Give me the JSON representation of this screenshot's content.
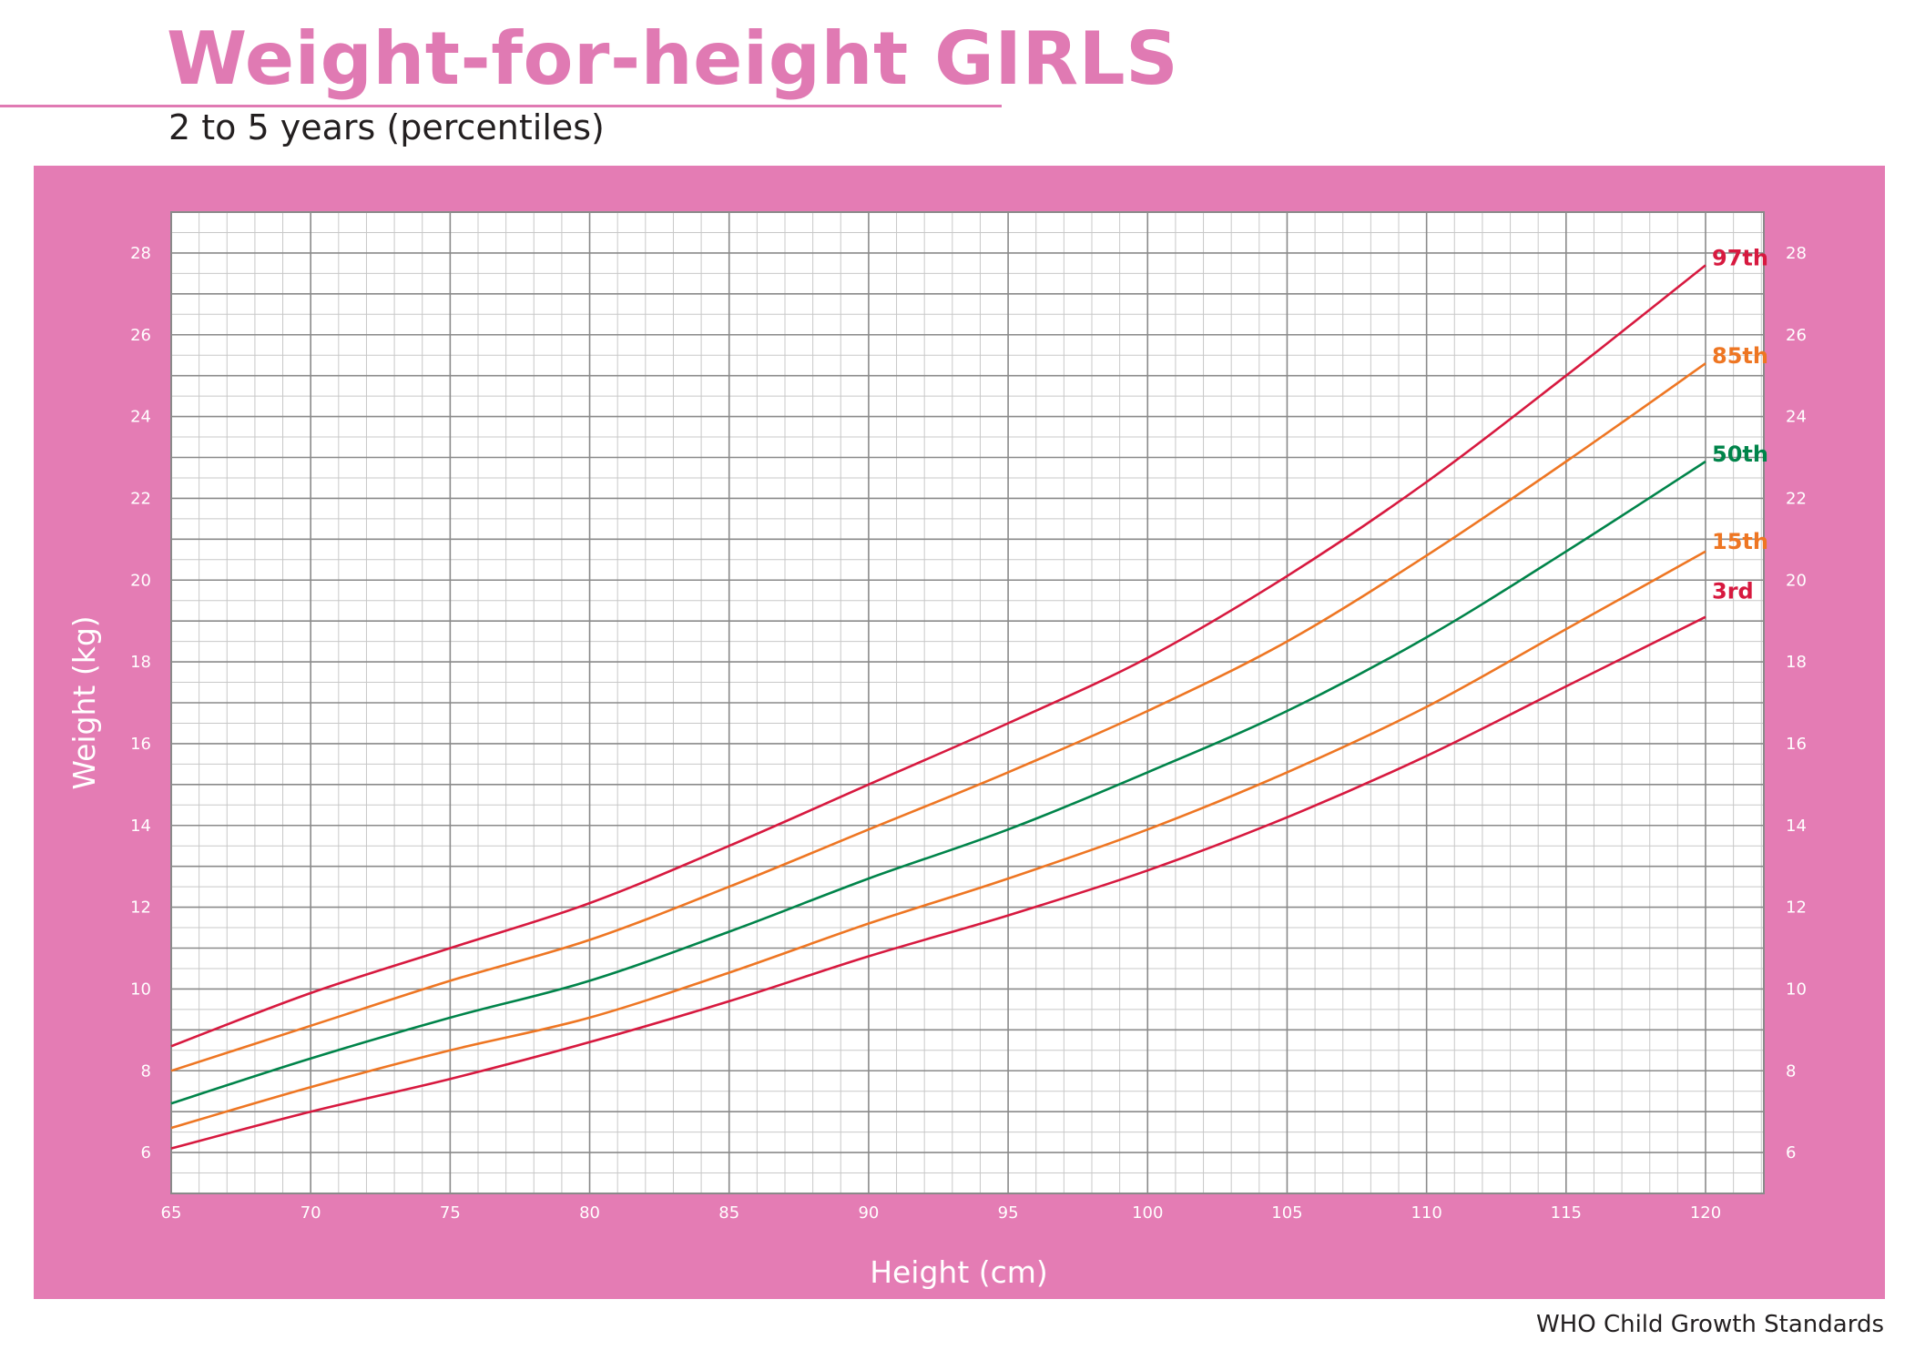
{
  "header": {
    "title": "Weight-for-height GIRLS",
    "subtitle": "2 to 5 years (percentiles)"
  },
  "footer": {
    "credit": "WHO Child Growth Standards"
  },
  "colors": {
    "frame": "#e47cb4",
    "title": "#e07ab3",
    "grid_major": "#8a8a8a",
    "grid_minor": "#c8c8c8",
    "p97": "#d7193f",
    "p85": "#ee7623",
    "p50": "#00844a",
    "p15": "#ee7623",
    "p3": "#d7193f"
  },
  "chart_data": {
    "type": "line",
    "xlabel": "Height (cm)",
    "ylabel": "Weight (kg)",
    "xlim": [
      65,
      120
    ],
    "ylim": [
      5,
      29
    ],
    "xticks": [
      65,
      70,
      75,
      80,
      85,
      90,
      95,
      100,
      105,
      110,
      115,
      120
    ],
    "yticks": [
      6,
      8,
      10,
      12,
      14,
      16,
      18,
      20,
      22,
      24,
      26,
      28
    ],
    "grid": true,
    "x_minor_step": 1,
    "y_minor_step": 0.5,
    "x": [
      65,
      70,
      75,
      80,
      85,
      90,
      95,
      100,
      105,
      110,
      115,
      120
    ],
    "series": [
      {
        "name": "97th",
        "color_key": "p97",
        "values": [
          8.6,
          9.9,
          11.0,
          12.1,
          13.5,
          15.0,
          16.5,
          18.1,
          20.1,
          22.4,
          25.0,
          27.7
        ]
      },
      {
        "name": "85th",
        "color_key": "p85",
        "values": [
          8.0,
          9.1,
          10.2,
          11.2,
          12.5,
          13.9,
          15.3,
          16.8,
          18.5,
          20.6,
          22.9,
          25.3
        ]
      },
      {
        "name": "50th",
        "color_key": "p50",
        "values": [
          7.2,
          8.3,
          9.3,
          10.2,
          11.4,
          12.7,
          13.9,
          15.3,
          16.8,
          18.6,
          20.7,
          22.9
        ]
      },
      {
        "name": "15th",
        "color_key": "p15",
        "values": [
          6.6,
          7.6,
          8.5,
          9.3,
          10.4,
          11.6,
          12.7,
          13.9,
          15.3,
          16.9,
          18.8,
          20.7
        ]
      },
      {
        "name": "3rd",
        "color_key": "p3",
        "values": [
          6.1,
          7.0,
          7.8,
          8.7,
          9.7,
          10.8,
          11.8,
          12.9,
          14.2,
          15.7,
          17.4,
          19.1
        ]
      }
    ]
  }
}
